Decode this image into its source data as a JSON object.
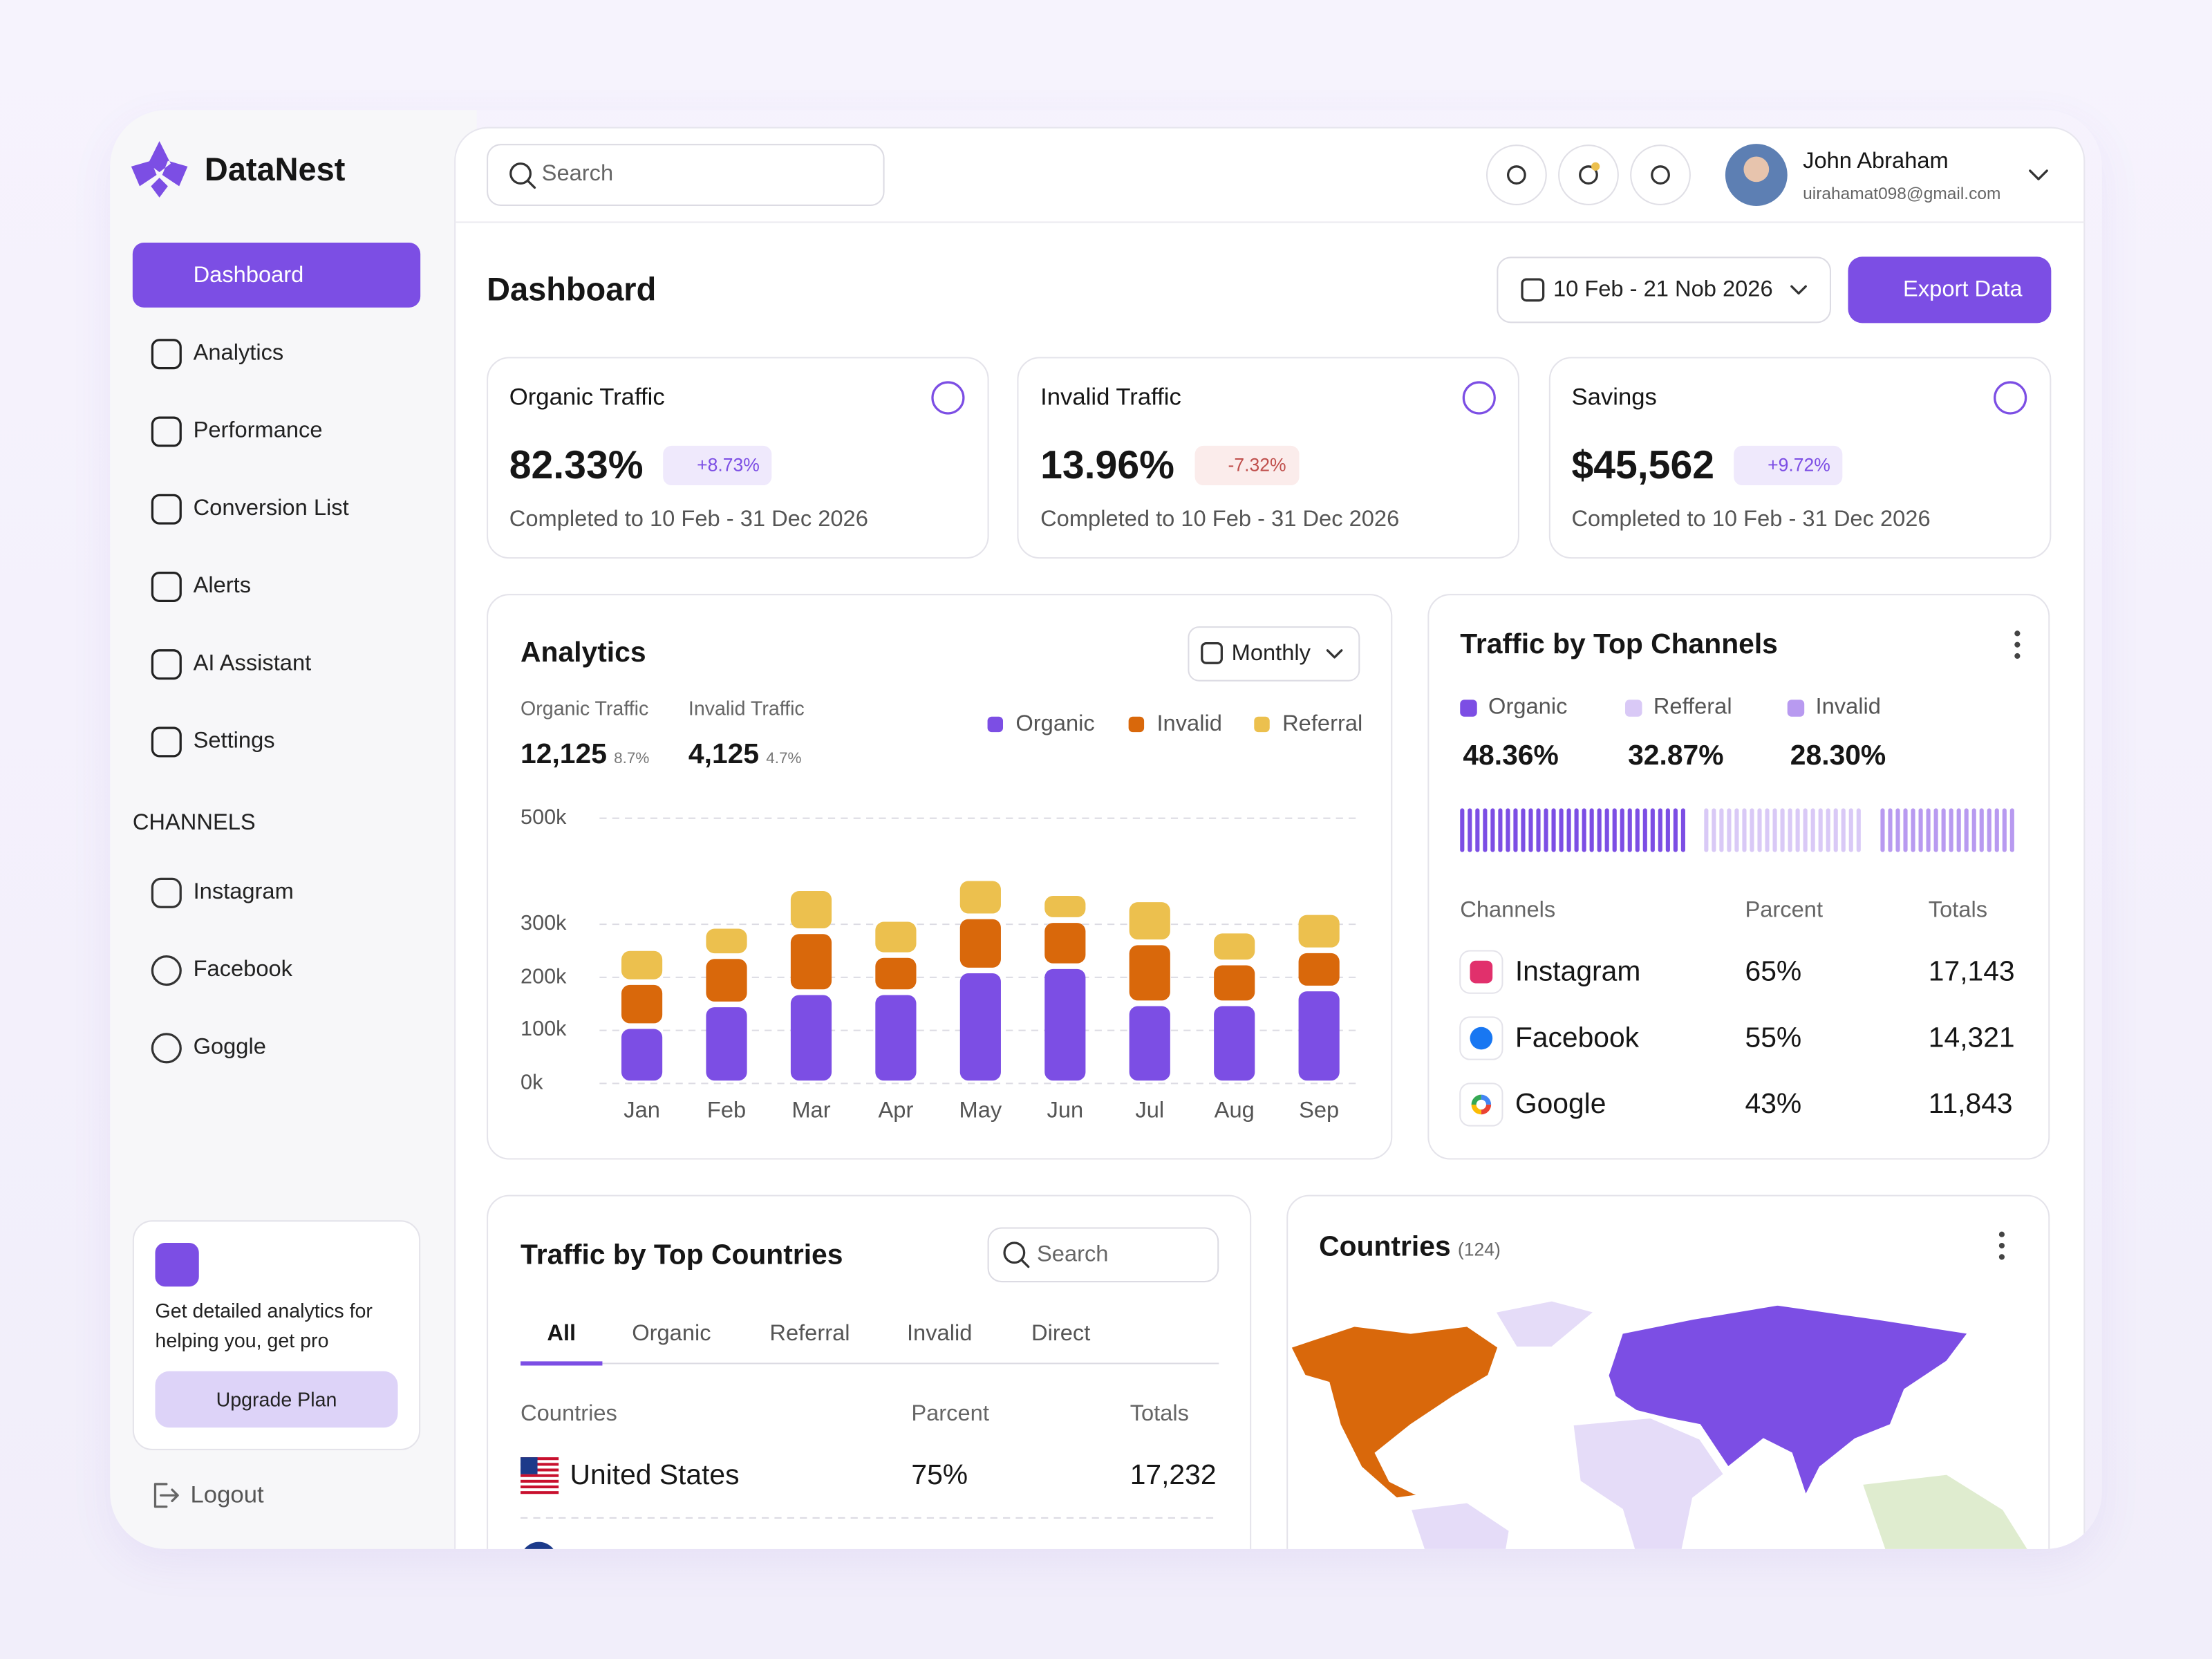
{
  "brand": "DataNest",
  "nav": [
    "Dashboard",
    "Analytics",
    "Performance",
    "Conversion List",
    "Alerts",
    "AI Assistant",
    "Settings"
  ],
  "channels_heading": "CHANNELS",
  "channels_nav": [
    "Instagram",
    "Facebook",
    "Goggle"
  ],
  "promo": {
    "text": "Get detailed analytics for helping you, get pro",
    "button": "Upgrade Plan"
  },
  "logout": "Logout",
  "header": {
    "search": "Search",
    "user_name": "John Abraham",
    "user_email": "uirahamat098@gmail.com"
  },
  "page_title": "Dashboard",
  "date_range": "10 Feb - 21 Nob 2026",
  "export": "Export Data",
  "stats": [
    {
      "title": "Organic Traffic",
      "value": "82.33%",
      "change": "+8.73%",
      "direction": "up",
      "note": "Completed to 10 Feb - 31 Dec 2026"
    },
    {
      "title": "Invalid Traffic",
      "value": "13.96%",
      "change": "-7.32%",
      "direction": "down",
      "note": "Completed to 10 Feb - 31 Dec 2026"
    },
    {
      "title": "Savings",
      "value": "$45,562",
      "change": "+9.72%",
      "direction": "up",
      "note": "Completed to 10 Feb - 31 Dec 2026"
    }
  ],
  "analytics": {
    "title": "Analytics",
    "period": "Monthly",
    "summary": [
      {
        "label": "Organic Traffic",
        "value": "12,125",
        "change": "8.7%"
      },
      {
        "label": "Invalid Traffic",
        "value": "4,125",
        "change": "4.7%"
      }
    ]
  },
  "chart_data": {
    "type": "stacked-bar",
    "categories": [
      "Jan",
      "Feb",
      "Mar",
      "Apr",
      "May",
      "Jun",
      "Jul",
      "Aug",
      "Sep"
    ],
    "series": [
      {
        "name": "Organic",
        "color": "#7c4ee4",
        "values": [
          108000,
          149000,
          172000,
          172000,
          213000,
          221000,
          151000,
          151000,
          179000
        ]
      },
      {
        "name": "Invalid",
        "color": "#d9680b",
        "values": [
          83000,
          91000,
          115000,
          70000,
          102000,
          87000,
          115000,
          77000,
          72000
        ]
      },
      {
        "name": "Referral",
        "color": "#ecc04e",
        "values": [
          64000,
          57000,
          81000,
          68000,
          72000,
          51000,
          81000,
          60000,
          72000
        ]
      }
    ],
    "ylim": [
      0,
      500000
    ],
    "yticks": [
      {
        "value": 0,
        "label": "0k"
      },
      {
        "value": 100000,
        "label": "100k"
      },
      {
        "value": 200000,
        "label": "200k"
      },
      {
        "value": 300000,
        "label": "300k"
      },
      {
        "value": 500000,
        "label": "500k"
      }
    ],
    "grid": true,
    "legend": "top-right"
  },
  "top_channels": {
    "title": "Traffic by Top Channels",
    "legend": [
      {
        "name": "Organic",
        "value": "48.36%",
        "color": "#7c4ee4"
      },
      {
        "name": "Refferal",
        "value": "32.87%",
        "color": "#d9c9f6"
      },
      {
        "name": "Invalid",
        "value": "28.30%",
        "color": "#b89af0"
      }
    ],
    "columns": [
      "Channels",
      "Parcent",
      "Totals"
    ],
    "rows": [
      [
        "Instagram",
        "65%",
        "17,143"
      ],
      [
        "Facebook",
        "55%",
        "14,321"
      ],
      [
        "Google",
        "43%",
        "11,843"
      ]
    ]
  },
  "top_countries": {
    "title": "Traffic by Top Countries",
    "search": "Search",
    "tabs": [
      "All",
      "Organic",
      "Referral",
      "Invalid",
      "Direct"
    ],
    "columns": [
      "Countries",
      "Parcent",
      "Totals"
    ],
    "rows": [
      [
        "United States",
        "75%",
        "17,232"
      ]
    ]
  },
  "map": {
    "title": "Countries",
    "count": "(124)"
  }
}
